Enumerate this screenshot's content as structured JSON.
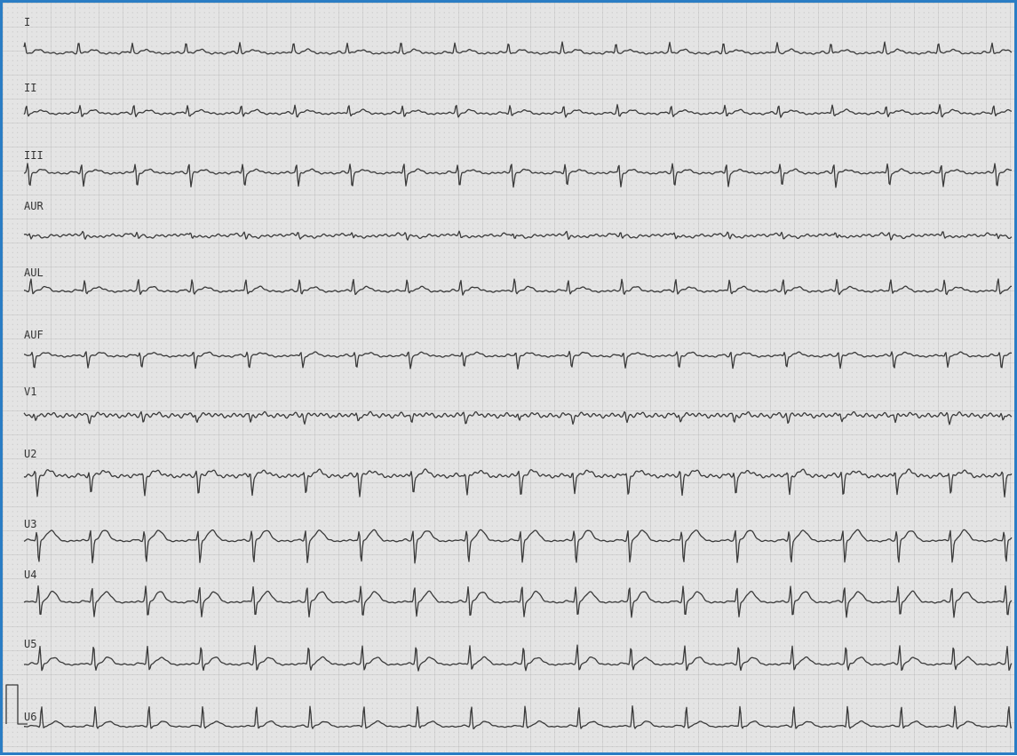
{
  "leads": [
    {
      "label": "I"
    },
    {
      "label": "II"
    },
    {
      "label": "III"
    },
    {
      "label": "AUR"
    },
    {
      "label": "AUL"
    },
    {
      "label": "AUF"
    },
    {
      "label": "V1"
    },
    {
      "label": "U2"
    },
    {
      "label": "U3"
    },
    {
      "label": "U4"
    },
    {
      "label": "U5"
    },
    {
      "label": "U6"
    }
  ]
}
